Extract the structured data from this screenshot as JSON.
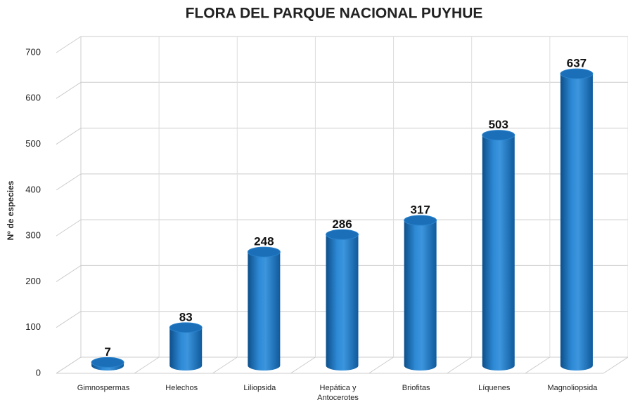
{
  "chart_data": {
    "type": "bar",
    "title": "FLORA DEL PARQUE NACIONAL PUYHUE",
    "y_label": "N° de especies",
    "categories": [
      "Gimnospermas",
      "Helechos",
      "Liliopsida",
      "Hepática y Antocerotes",
      "Briofitas",
      "Líquenes",
      "Magnoliopsida"
    ],
    "values": [
      7,
      83,
      248,
      286,
      317,
      503,
      637
    ],
    "color": "#1f7bc4",
    "ylim": [
      0,
      700
    ],
    "yticks": [
      0,
      100,
      200,
      300,
      400,
      500,
      600,
      700
    ],
    "grid": true
  }
}
